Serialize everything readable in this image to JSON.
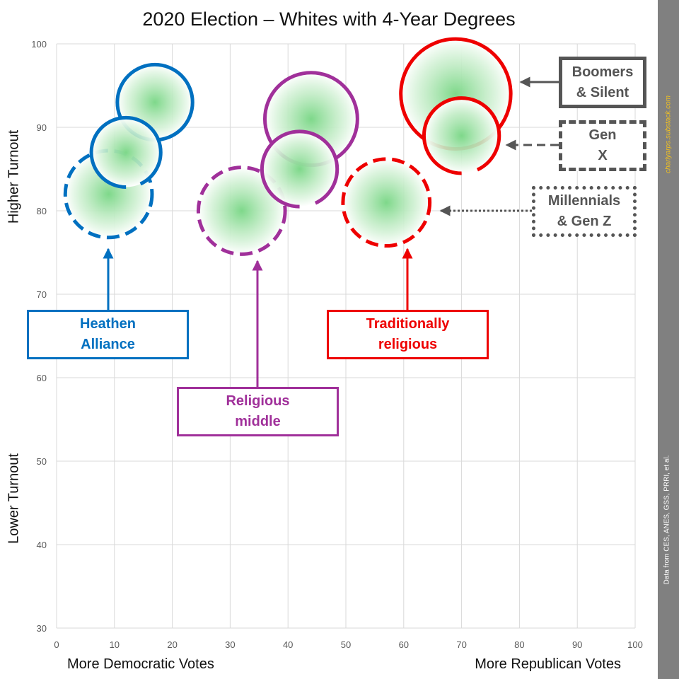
{
  "chart_data": {
    "type": "scatter",
    "title": "2020 Election – Whites with 4-Year Degrees",
    "ylabel_high": "Higher Turnout",
    "ylabel_low": "Lower Turnout",
    "xlabel_left": "More Democratic Votes",
    "xlabel_right": "More Republican Votes",
    "xlim": [
      0,
      100
    ],
    "ylim": [
      30,
      100
    ],
    "x_ticks": [
      0,
      10,
      20,
      30,
      40,
      50,
      60,
      70,
      80,
      90,
      100
    ],
    "y_ticks": [
      30,
      40,
      50,
      60,
      70,
      80,
      90,
      100
    ],
    "grid": true,
    "groups": [
      {
        "name": "Heathen Alliance",
        "color": "#0070c0"
      },
      {
        "name": "Religious middle",
        "color": "#a0309a"
      },
      {
        "name": "Traditionally religious",
        "color": "#ee0000"
      }
    ],
    "generations": [
      {
        "name": "Boomers & Silent",
        "line": "solid"
      },
      {
        "name": "Gen X",
        "line": "solid-gap"
      },
      {
        "name": "Millennials & Gen Z",
        "line": "dashed"
      }
    ],
    "points": [
      {
        "group": "Heathen Alliance",
        "generation": "Boomers & Silent",
        "x": 17,
        "y": 93,
        "size": 6.5
      },
      {
        "group": "Heathen Alliance",
        "generation": "Gen X",
        "x": 12,
        "y": 87,
        "size": 6
      },
      {
        "group": "Heathen Alliance",
        "generation": "Millennials & Gen Z",
        "x": 9,
        "y": 82,
        "size": 7.5
      },
      {
        "group": "Religious middle",
        "generation": "Boomers & Silent",
        "x": 44,
        "y": 91,
        "size": 8
      },
      {
        "group": "Religious middle",
        "generation": "Gen X",
        "x": 42,
        "y": 85,
        "size": 6.5
      },
      {
        "group": "Religious middle",
        "generation": "Millennials & Gen Z",
        "x": 32,
        "y": 80,
        "size": 7.5
      },
      {
        "group": "Traditionally religious",
        "generation": "Boomers & Silent",
        "x": 69,
        "y": 94,
        "size": 9.5
      },
      {
        "group": "Traditionally religious",
        "generation": "Gen X",
        "x": 70,
        "y": 89,
        "size": 6.5
      },
      {
        "group": "Traditionally religious",
        "generation": "Millennials & Gen Z",
        "x": 57,
        "y": 81,
        "size": 7.5
      }
    ]
  },
  "callouts": {
    "heathen": "Heathen\nAlliance",
    "middle": "Religious\nmiddle",
    "traditional": "Traditionally\nreligious",
    "boomers": "Boomers\n& Silent",
    "genx": "Gen\nX",
    "millennials": "Millennials\n& Gen Z"
  },
  "sidebar": {
    "url": "charlyarps.substack.com",
    "source": "Data from CES, ANES, GSS, PRRI, et al."
  }
}
